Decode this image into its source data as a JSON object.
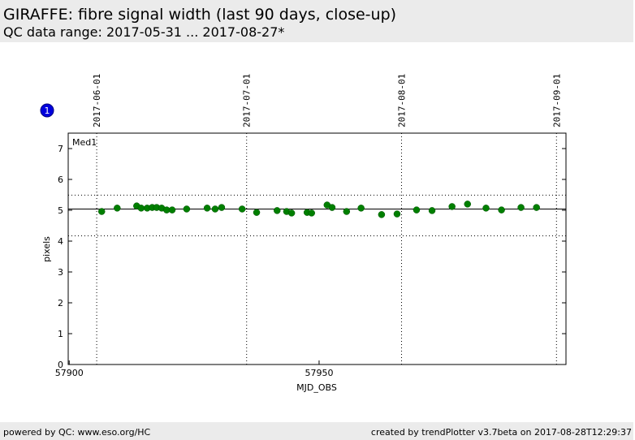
{
  "chart_data": {
    "type": "scatter",
    "title": "GIRAFFE: fibre signal width (last 90 days, close-up)",
    "subtitle": "QC data range: 2017-05-31 ... 2017-08-27*",
    "footer_left": "powered by QC: www.eso.org/HC",
    "footer_right": "created by trendPlotter v3.7beta on 2017-08-28T12:29:37",
    "badge": "1",
    "annotation": "Med1",
    "xlabel": "MJD_OBS",
    "ylabel": "pixels",
    "xlim": [
      57899.8,
      57999.4
    ],
    "ylim": [
      0,
      7.5
    ],
    "xticks": [
      57900,
      57950
    ],
    "yticks": [
      0,
      1,
      2,
      3,
      4,
      5,
      6,
      7
    ],
    "x2ticks": [
      {
        "value": 57905.5,
        "label": "2017-06-01"
      },
      {
        "value": 57935.5,
        "label": "2017-07-01"
      },
      {
        "value": 57966.5,
        "label": "2017-08-01"
      },
      {
        "value": 57997.5,
        "label": "2017-09-01"
      }
    ],
    "hlines": [
      {
        "value": 5.04,
        "style": "solid"
      },
      {
        "value": 5.49,
        "style": "dotted"
      },
      {
        "value": 4.17,
        "style": "dotted"
      }
    ],
    "series": [
      {
        "color": "#007f00",
        "x": [
          57906.5,
          57909.6,
          57913.5,
          57914.4,
          57915.6,
          57916.6,
          57917.5,
          57918.5,
          57919.5,
          57920.6,
          57923.5,
          57927.6,
          57929.2,
          57930.5,
          57934.6,
          57937.5,
          57941.6,
          57943.5,
          57944.5,
          57947.6,
          57948.5,
          57951.6,
          57952.6,
          57955.5,
          57958.4,
          57962.5,
          57965.6,
          57969.5,
          57972.6,
          57976.6,
          57979.7,
          57983.4,
          57986.5,
          57990.4,
          57993.5
        ],
        "values": [
          4.96,
          5.07,
          5.14,
          5.07,
          5.07,
          5.09,
          5.09,
          5.07,
          5.01,
          5.01,
          5.04,
          5.07,
          5.04,
          5.09,
          5.04,
          4.93,
          4.99,
          4.96,
          4.91,
          4.93,
          4.91,
          5.17,
          5.09,
          4.96,
          5.07,
          4.86,
          4.88,
          5.01,
          4.99,
          5.12,
          5.2,
          5.07,
          5.01,
          5.09,
          5.09
        ]
      }
    ]
  }
}
